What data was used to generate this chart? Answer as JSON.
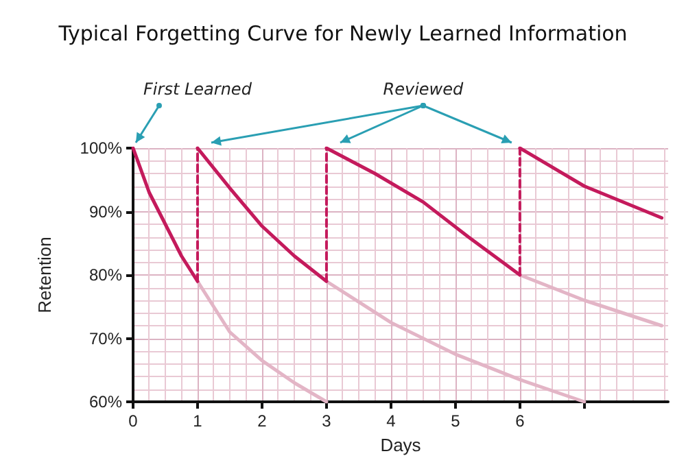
{
  "chart_data": {
    "type": "line",
    "title": "Typical Forgetting Curve for Newly Learned Information",
    "xlabel": "Days",
    "ylabel": "Retention",
    "annotations": [
      "First Learned",
      "Reviewed"
    ],
    "series": [
      {
        "color": "#e3b5c6",
        "x": [
          1,
          1.5,
          2,
          2.5,
          3
        ],
        "values": [
          79,
          71,
          66.5,
          63,
          60
        ]
      },
      {
        "color": "#e3b5c6",
        "x": [
          3,
          4,
          5,
          6,
          7
        ],
        "values": [
          79,
          72.5,
          67.5,
          63.5,
          60
        ]
      },
      {
        "color": "#e3b5c6",
        "x": [
          6,
          7,
          8.2
        ],
        "values": [
          80,
          76,
          72
        ]
      },
      {
        "color": "#c41a5c",
        "x": [
          0,
          0.25,
          0.5,
          0.75,
          1
        ],
        "values": [
          100,
          93,
          88,
          83,
          79
        ]
      },
      {
        "color": "#c41a5c",
        "x": [
          1,
          1.5,
          2,
          2.5,
          3
        ],
        "values": [
          100,
          93.7,
          87.7,
          83,
          79
        ]
      },
      {
        "color": "#c41a5c",
        "x": [
          3,
          3.75,
          4.5,
          5.2,
          6
        ],
        "values": [
          100,
          96,
          91.5,
          86,
          80
        ]
      },
      {
        "color": "#c41a5c",
        "x": [
          6,
          7,
          8.2
        ],
        "values": [
          100,
          94,
          89
        ]
      },
      {
        "color": "#c41a5c",
        "line_style": "dashed",
        "x": [
          1,
          1
        ],
        "values": [
          79,
          100
        ]
      },
      {
        "color": "#c41a5c",
        "line_style": "dashed",
        "x": [
          3,
          3
        ],
        "values": [
          79,
          100
        ]
      },
      {
        "color": "#c41a5c",
        "line_style": "dashed",
        "x": [
          6,
          6
        ],
        "values": [
          80,
          100
        ]
      }
    ],
    "xlim": [
      0,
      8.3
    ],
    "xticks": [
      0,
      1,
      2,
      3,
      4,
      5,
      6,
      {
        "value": 7,
        "label": null
      }
    ],
    "ylim": [
      60,
      100
    ],
    "yticks": [
      {
        "value": 60,
        "label": "60%"
      },
      {
        "value": 70,
        "label": "70%"
      },
      {
        "value": 80,
        "label": "80%"
      },
      {
        "value": 90,
        "label": "90%"
      },
      {
        "value": 100,
        "label": "100%"
      }
    ],
    "grid": true,
    "marker": "none",
    "line_style": "solid"
  }
}
